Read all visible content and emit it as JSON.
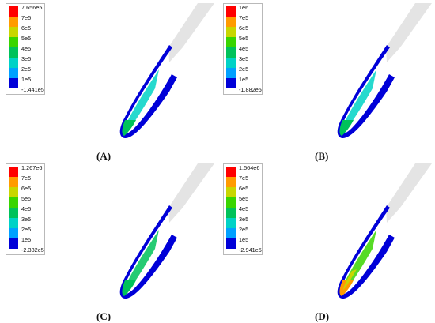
{
  "colors": [
    "#ff0000",
    "#ff9b00",
    "#c8d600",
    "#39d500",
    "#00c25a",
    "#00d2c6",
    "#00a0ff",
    "#0000d8"
  ],
  "panels": [
    {
      "label": "(A)",
      "legend": [
        "7.656e5",
        "7e5",
        "6e5",
        "5e5",
        "4e5",
        "3e5",
        "2e5",
        "1e5",
        "-1.441e5"
      ],
      "stress": "low"
    },
    {
      "label": "(B)",
      "legend": [
        "1e6",
        "7e5",
        "6e5",
        "5e5",
        "4e5",
        "3e5",
        "2e5",
        "1e5",
        "-1.882e5"
      ],
      "stress": "low"
    },
    {
      "label": "(C)",
      "legend": [
        "1.267e6",
        "7e5",
        "6e5",
        "5e5",
        "4e5",
        "3e5",
        "2e5",
        "1e5",
        "-2.382e5"
      ],
      "stress": "medium"
    },
    {
      "label": "(D)",
      "legend": [
        "1.564e6",
        "7e5",
        "6e5",
        "5e5",
        "4e5",
        "3e5",
        "2e5",
        "1e5",
        "-2.941e5"
      ],
      "stress": "high"
    }
  ]
}
